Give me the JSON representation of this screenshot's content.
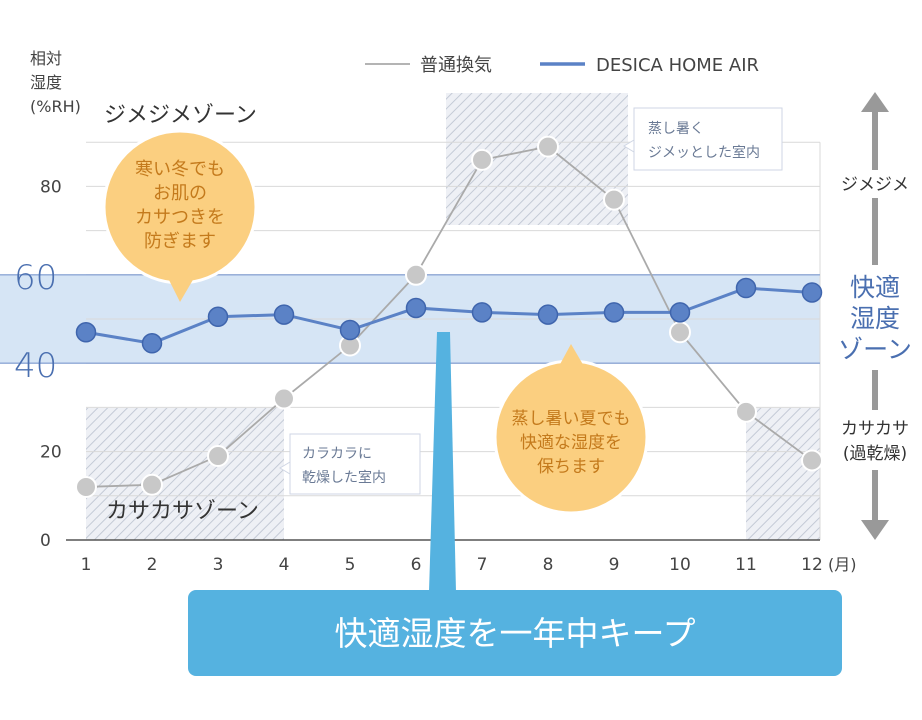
{
  "chart_data": {
    "type": "line",
    "ylabel": "相対\n湿度\n(%RH)",
    "x": [
      1,
      2,
      3,
      4,
      5,
      6,
      7,
      8,
      9,
      10,
      11,
      12
    ],
    "x_unit": "(月)",
    "ylim": [
      0,
      90
    ],
    "yticks": [
      0,
      20,
      40,
      60,
      80
    ],
    "grid": true,
    "legend_position": "top-right",
    "series": [
      {
        "name": "普通換気",
        "color": "#aaaaaa",
        "values": [
          12,
          12.5,
          19,
          32,
          44,
          60,
          86,
          89,
          77,
          47,
          29,
          18
        ]
      },
      {
        "name": "DESICA HOME AIR",
        "color": "#5b82c6",
        "values": [
          47,
          44.5,
          50.5,
          51,
          47.5,
          52.5,
          51.5,
          51,
          51.5,
          51.5,
          57,
          56
        ]
      }
    ],
    "bands": [
      {
        "name": "comfort",
        "from": 40,
        "to": 60,
        "color": "#cfe0f3"
      }
    ],
    "annotations": {
      "top_zone": "ジメジメゾーン",
      "bottom_zone": "カサカサゾーン",
      "winter_bubble": [
        "寒い冬でも",
        "お肌の",
        "カサつきを",
        "防ぎます"
      ],
      "summer_bubble": [
        "蒸し暑い夏でも",
        "快適な湿度を",
        "保ちます"
      ],
      "summer_note": [
        "蒸し暑く",
        "ジメッとした室内"
      ],
      "dry_note": [
        "カラカラに",
        "乾燥した室内"
      ],
      "right_top": "ジメジメ",
      "right_middle": [
        "快適",
        "湿度",
        "ゾーン"
      ],
      "right_bottom": [
        "カサカサ",
        "(過乾燥)"
      ],
      "banner": "快適湿度を一年中キープ"
    },
    "colors": {
      "grid": "#d9d9d9",
      "hatch": "#c4cad6",
      "bubble": "#fbcf80",
      "bubble_stroke": "#f2a83e",
      "bubble_text": "#c47a1c",
      "banner": "#55b2e0",
      "axis_blue": "#4a6fb0"
    }
  }
}
